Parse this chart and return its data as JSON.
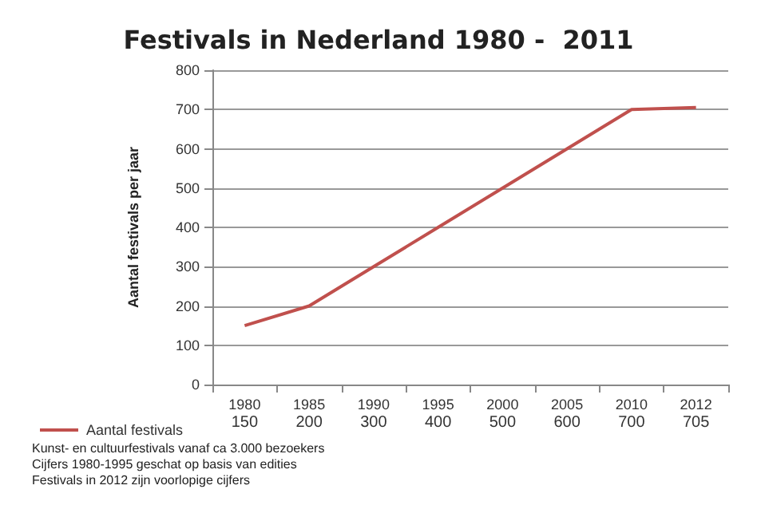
{
  "chart_data": {
    "type": "line",
    "title": "Festivals in Nederland 1980 -  2011",
    "ylabel": "Aantal festivals per jaar",
    "categories": [
      "1980",
      "1985",
      "1990",
      "1995",
      "2000",
      "2005",
      "2010",
      "2012"
    ],
    "series": [
      {
        "name": "Aantal festivals",
        "color": "#c0504d",
        "values": [
          150,
          200,
          300,
          400,
          500,
          600,
          700,
          705
        ]
      }
    ],
    "ylim": [
      0,
      800
    ],
    "yticks": [
      0,
      100,
      200,
      300,
      400,
      500,
      600,
      700,
      800
    ],
    "grid": "y",
    "legend": "bottom left",
    "data_labels": true,
    "marker": "none",
    "annotations": [
      "Kunst- en cultuurfestivals vanaf ca 3.000 bezoekers",
      "Cijfers 1980-1995 geschat op basis van edities",
      "Festivals in 2012 zijn voorlopige cijfers"
    ]
  }
}
